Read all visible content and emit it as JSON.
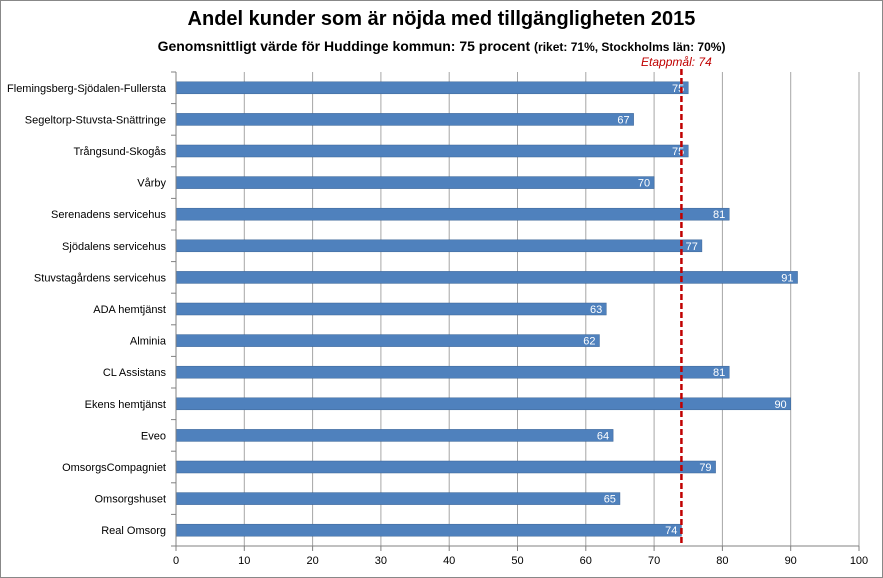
{
  "chart_data": {
    "type": "bar",
    "orientation": "horizontal",
    "title": "Andel kunder som är nöjda med tillgängligheten 2015",
    "subtitle_main": "Genomsnittligt värde för Huddinge kommun: 75 procent",
    "subtitle_note": "(riket: 71%, Stockholms län: 70%)",
    "categories": [
      "Flemingsberg-Sjödalen-Fullersta",
      "Segeltorp-Stuvsta-Snättringe",
      "Trångsund-Skogås",
      "Vårby",
      "Serenadens servicehus",
      "Sjödalens servicehus",
      "Stuvstagårdens servicehus",
      "ADA hemtjänst",
      "Alminia",
      "CL Assistans",
      "Ekens hemtjänst",
      "Eveo",
      "OmsorgsCompagniet",
      "Omsorgshuset",
      "Real Omsorg"
    ],
    "values": [
      75,
      67,
      75,
      70,
      81,
      77,
      91,
      63,
      62,
      81,
      90,
      64,
      79,
      65,
      74
    ],
    "xlim": [
      0,
      100
    ],
    "xticks": [
      0,
      10,
      20,
      30,
      40,
      50,
      60,
      70,
      80,
      90,
      100
    ],
    "grid": true,
    "bar_color": "#4f81bd",
    "target": {
      "label": "Etappmål: 74",
      "value": 74,
      "color": "#c00000"
    }
  }
}
